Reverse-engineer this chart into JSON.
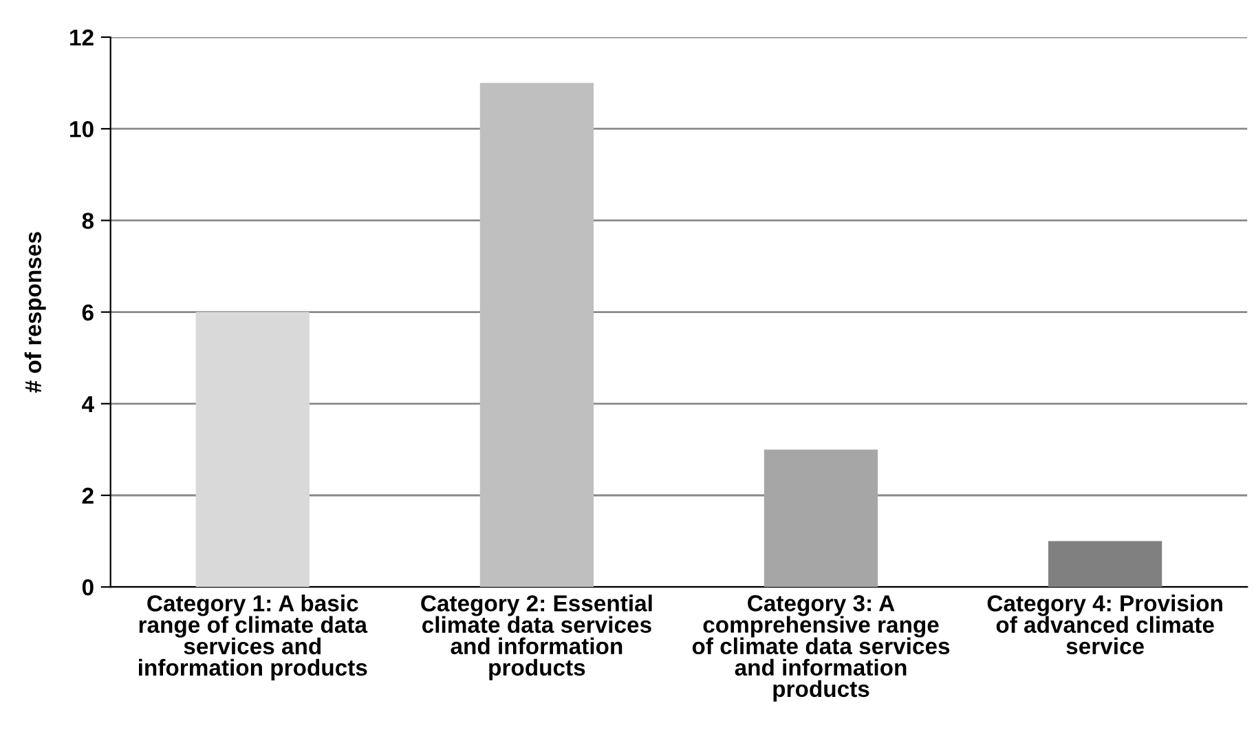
{
  "chart_data": {
    "type": "bar",
    "ylabel": "# of responses",
    "categories": [
      "Category 1: A basic\nrange of climate data\nservices and\ninformation products",
      "Category 2: Essential\nclimate data services\nand information\nproducts",
      "Category 3: A\ncomprehensive range\nof climate data services\nand information\nproducts",
      "Category 4: Provision\nof advanced climate\nservice"
    ],
    "values": [
      6,
      11,
      3,
      1
    ],
    "colors": [
      "#d9d9d9",
      "#bfbfbf",
      "#a6a6a6",
      "#808080"
    ],
    "ylim": [
      0,
      12
    ],
    "yticks": [
      0,
      2,
      4,
      6,
      8,
      10,
      12
    ],
    "grid": "y",
    "legend": false
  }
}
